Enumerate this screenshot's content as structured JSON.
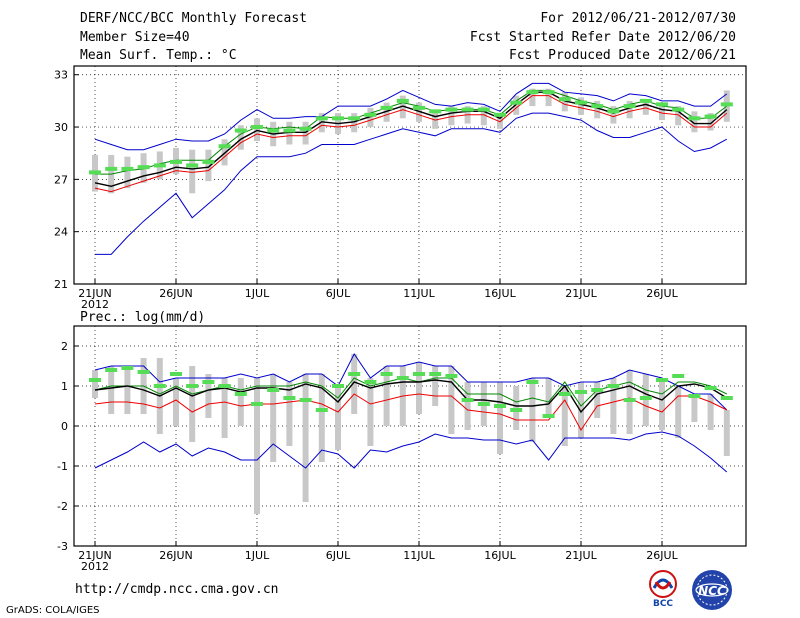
{
  "header": {
    "title": "DERF/NCC/BCC Monthly Forecast",
    "member_size": "Member Size=40",
    "variable1": "Mean Surf. Temp.: °C",
    "forecast_period": "For 2012/06/21-2012/07/30",
    "started_date": "Fcst Started Refer Date 2012/06/20",
    "produced_date": "Fcst Produced Date 2012/06/21"
  },
  "footer": {
    "url": "http://cmdp.ncc.cma.gov.cn",
    "grads": "GrADS: COLA/IGES",
    "logo_bcc": "BCC",
    "logo_ncc": "NCC"
  },
  "colors": {
    "envelope": "#0000cc",
    "ensemble_mean": "#000000",
    "upper_band": "#008800",
    "lower_band": "#ee0000",
    "box": "#c8c8c8",
    "climatology": "#55dd55"
  },
  "chart_data": [
    {
      "type": "line",
      "title": "Mean Surf. Temp.: °C",
      "ylim": [
        21,
        33.5
      ],
      "yticks": [
        21,
        24,
        27,
        30,
        33
      ],
      "x_tick_labels": [
        "21JUN",
        "26JUN",
        "1JUL",
        "6JUL",
        "11JUL",
        "16JUL",
        "21JUL",
        "26JUL"
      ],
      "x_year_label": "2012",
      "days": 40,
      "series": [
        {
          "name": "max",
          "values": [
            29.3,
            29.0,
            28.7,
            28.7,
            29.0,
            29.3,
            29.2,
            29.2,
            29.6,
            30.4,
            31.0,
            30.5,
            30.5,
            30.6,
            30.6,
            31.2,
            31.2,
            31.2,
            31.6,
            32.1,
            31.7,
            31.3,
            31.2,
            31.4,
            31.3,
            30.9,
            31.9,
            32.5,
            32.5,
            32.0,
            31.9,
            31.8,
            31.5,
            31.9,
            31.8,
            31.5,
            31.5,
            31.2,
            31.2,
            31.9
          ]
        },
        {
          "name": "upper",
          "values": [
            27.3,
            27.3,
            27.5,
            27.6,
            27.9,
            28.1,
            28.1,
            28.1,
            28.9,
            29.6,
            30.0,
            29.9,
            30.0,
            29.9,
            30.6,
            30.5,
            30.5,
            30.8,
            31.1,
            31.4,
            31.2,
            30.9,
            31.0,
            31.0,
            31.0,
            30.7,
            31.5,
            32.1,
            32.1,
            31.8,
            31.5,
            31.3,
            31.0,
            31.3,
            31.5,
            31.2,
            31.1,
            30.5,
            30.5,
            31.2
          ]
        },
        {
          "name": "mean",
          "values": [
            26.8,
            26.6,
            26.9,
            27.2,
            27.4,
            27.7,
            27.6,
            27.7,
            28.5,
            29.3,
            29.8,
            29.6,
            29.7,
            29.7,
            30.3,
            30.2,
            30.3,
            30.6,
            30.9,
            31.2,
            30.9,
            30.6,
            30.8,
            30.9,
            30.9,
            30.5,
            31.3,
            32.0,
            32.0,
            31.5,
            31.3,
            31.1,
            30.8,
            31.1,
            31.3,
            31.0,
            30.9,
            30.2,
            30.2,
            31.0
          ]
        },
        {
          "name": "lower",
          "values": [
            26.5,
            26.3,
            26.6,
            26.9,
            27.2,
            27.5,
            27.4,
            27.5,
            28.3,
            29.1,
            29.6,
            29.4,
            29.5,
            29.5,
            30.1,
            30.0,
            30.1,
            30.4,
            30.7,
            31.0,
            30.7,
            30.4,
            30.6,
            30.7,
            30.7,
            30.3,
            31.1,
            31.8,
            31.8,
            31.3,
            31.1,
            30.9,
            30.6,
            30.9,
            31.1,
            30.8,
            30.7,
            30.0,
            30.0,
            30.8
          ]
        },
        {
          "name": "min",
          "values": [
            22.7,
            22.7,
            23.7,
            24.6,
            25.4,
            26.2,
            24.8,
            25.6,
            26.4,
            27.5,
            28.3,
            28.3,
            28.3,
            28.5,
            29.0,
            29.0,
            29.0,
            29.3,
            29.6,
            29.9,
            29.7,
            29.5,
            29.9,
            29.9,
            29.9,
            29.7,
            30.5,
            30.8,
            30.8,
            30.6,
            30.4,
            29.8,
            29.4,
            29.4,
            29.7,
            30.0,
            29.2,
            28.6,
            28.8,
            29.3
          ]
        },
        {
          "name": "box_top",
          "values": [
            28.4,
            28.4,
            28.3,
            28.5,
            28.6,
            28.8,
            28.7,
            28.7,
            29.3,
            30.1,
            30.5,
            30.3,
            30.3,
            30.3,
            30.8,
            30.8,
            30.8,
            31.1,
            31.4,
            31.8,
            31.4,
            31.0,
            31.2,
            31.2,
            31.2,
            30.8,
            31.8,
            32.2,
            32.2,
            32.0,
            31.7,
            31.5,
            31.2,
            31.5,
            31.6,
            31.4,
            31.2,
            30.9,
            30.8,
            32.1
          ]
        },
        {
          "name": "box_bottom",
          "values": [
            26.3,
            26.2,
            26.5,
            26.8,
            27.0,
            27.3,
            26.2,
            26.9,
            27.8,
            28.7,
            29.2,
            28.9,
            29.0,
            29.0,
            29.7,
            29.6,
            29.7,
            30.0,
            30.3,
            30.5,
            30.3,
            29.9,
            30.1,
            30.2,
            30.1,
            29.9,
            30.7,
            31.2,
            31.2,
            30.9,
            30.7,
            30.5,
            30.2,
            30.5,
            30.7,
            30.4,
            30.1,
            29.7,
            29.8,
            30.3
          ]
        },
        {
          "name": "climatology",
          "values": [
            27.4,
            27.6,
            27.6,
            27.7,
            27.8,
            28.0,
            27.8,
            28.0,
            28.9,
            29.8,
            30.0,
            29.8,
            29.8,
            29.9,
            30.5,
            30.5,
            30.5,
            30.7,
            31.1,
            31.5,
            31.1,
            30.9,
            31.0,
            31.0,
            31.0,
            30.7,
            31.4,
            32.0,
            32.0,
            31.6,
            31.4,
            31.2,
            30.9,
            31.2,
            31.5,
            31.3,
            31.0,
            30.5,
            30.6,
            31.3
          ]
        }
      ]
    },
    {
      "type": "line",
      "title": "Prec.: log(mm/d)",
      "ylim": [
        -3,
        2.5
      ],
      "yticks": [
        -3,
        -2,
        -1,
        0,
        1,
        2
      ],
      "x_tick_labels": [
        "21JUN",
        "26JUN",
        "1JUL",
        "6JUL",
        "11JUL",
        "16JUL",
        "21JUL",
        "26JUL"
      ],
      "x_year_label": "2012",
      "days": 40,
      "series": [
        {
          "name": "max",
          "values": [
            1.4,
            1.5,
            1.5,
            1.5,
            1.1,
            1.2,
            1.2,
            1.2,
            1.2,
            1.3,
            1.2,
            1.3,
            1.1,
            1.3,
            1.3,
            1.0,
            1.8,
            1.2,
            1.5,
            1.5,
            1.6,
            1.5,
            1.5,
            1.1,
            1.1,
            1.1,
            1.1,
            1.2,
            1.2,
            1.0,
            1.1,
            1.1,
            1.2,
            1.4,
            1.3,
            1.2,
            1.0,
            0.8,
            0.8,
            0.4
          ]
        },
        {
          "name": "upper",
          "values": [
            0.9,
            1.0,
            1.0,
            1.0,
            0.8,
            1.0,
            0.8,
            0.9,
            1.0,
            0.9,
            1.0,
            1.0,
            1.0,
            1.1,
            1.0,
            0.7,
            1.2,
            1.0,
            1.1,
            1.2,
            1.1,
            1.2,
            1.2,
            0.8,
            0.8,
            0.8,
            0.6,
            0.7,
            0.6,
            1.1,
            0.5,
            0.9,
            1.0,
            1.1,
            0.9,
            0.8,
            1.1,
            1.1,
            1.0,
            0.8
          ]
        },
        {
          "name": "mean",
          "values": [
            0.9,
            0.95,
            1.0,
            0.9,
            0.75,
            0.95,
            0.75,
            0.9,
            0.95,
            0.85,
            0.95,
            0.95,
            0.9,
            1.05,
            0.95,
            0.6,
            1.1,
            0.95,
            1.05,
            1.1,
            1.1,
            1.15,
            1.1,
            0.65,
            0.65,
            0.6,
            0.5,
            0.5,
            0.55,
            1.0,
            0.35,
            0.8,
            0.9,
            1.0,
            0.8,
            0.65,
            1.0,
            1.05,
            0.95,
            0.7
          ]
        },
        {
          "name": "lower",
          "values": [
            0.55,
            0.6,
            0.6,
            0.55,
            0.45,
            0.65,
            0.35,
            0.55,
            0.6,
            0.5,
            0.55,
            0.55,
            0.6,
            0.65,
            0.55,
            0.35,
            0.8,
            0.55,
            0.65,
            0.75,
            0.8,
            0.75,
            0.75,
            0.4,
            0.35,
            0.3,
            0.15,
            0.15,
            0.15,
            0.65,
            -0.1,
            0.5,
            0.6,
            0.7,
            0.5,
            0.35,
            0.75,
            0.75,
            0.6,
            0.4
          ]
        },
        {
          "name": "min",
          "values": [
            -1.05,
            -0.85,
            -0.65,
            -0.4,
            -0.65,
            -0.45,
            -0.75,
            -0.55,
            -0.65,
            -0.85,
            -0.85,
            -0.45,
            -0.75,
            -1.05,
            -0.6,
            -0.7,
            -1.05,
            -0.6,
            -0.65,
            -0.5,
            -0.4,
            -0.2,
            -0.3,
            -0.3,
            -0.35,
            -0.35,
            -0.45,
            -0.35,
            -0.85,
            -0.3,
            -0.3,
            -0.3,
            -0.3,
            -0.35,
            -0.2,
            -0.15,
            -0.25,
            -0.5,
            -0.8,
            -1.15
          ]
        },
        {
          "name": "box_top",
          "values": [
            1.4,
            1.5,
            1.5,
            1.7,
            1.7,
            1.2,
            1.5,
            1.3,
            1.2,
            1.2,
            1.2,
            1.3,
            1.1,
            1.3,
            1.3,
            1.0,
            1.8,
            1.2,
            1.5,
            1.5,
            1.6,
            1.5,
            1.5,
            1.1,
            1.1,
            1.1,
            1.0,
            1.2,
            1.2,
            1.0,
            1.1,
            1.1,
            1.2,
            1.4,
            1.3,
            1.2,
            1.0,
            0.8,
            0.8,
            0.4
          ]
        },
        {
          "name": "box_bottom",
          "values": [
            0.7,
            0.3,
            0.3,
            0.3,
            -0.2,
            0.0,
            -0.4,
            0.2,
            -0.3,
            0.0,
            -2.2,
            -0.9,
            -0.5,
            -1.9,
            -0.9,
            -0.6,
            0.3,
            -0.5,
            0.0,
            0.0,
            0.3,
            0.5,
            -0.2,
            -0.1,
            0.0,
            -0.7,
            -0.1,
            -0.4,
            0.2,
            -0.5,
            -0.3,
            0.2,
            -0.2,
            -0.2,
            0.0,
            -0.1,
            -0.3,
            0.1,
            -0.1,
            -0.75
          ]
        },
        {
          "name": "climatology",
          "values": [
            1.15,
            1.4,
            1.45,
            1.35,
            1.0,
            1.3,
            1.0,
            1.1,
            1.0,
            0.8,
            0.55,
            0.9,
            0.7,
            0.65,
            0.4,
            1.0,
            1.3,
            1.1,
            1.3,
            1.2,
            1.3,
            1.3,
            1.25,
            0.65,
            0.55,
            0.5,
            0.4,
            1.1,
            0.25,
            0.8,
            0.85,
            0.9,
            1.0,
            0.65,
            0.7,
            1.15,
            1.25,
            0.75,
            0.95,
            0.7
          ]
        }
      ]
    }
  ]
}
